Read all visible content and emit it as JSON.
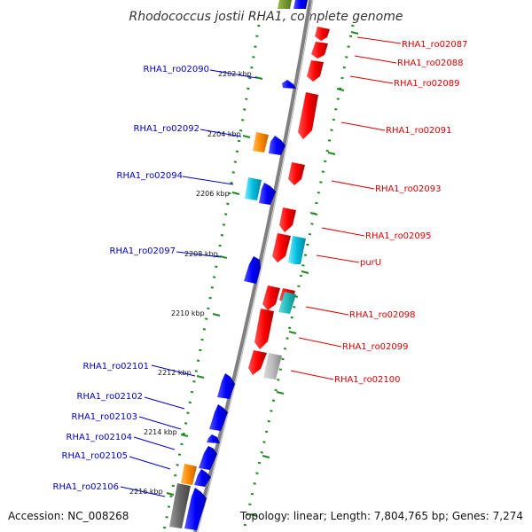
{
  "title": "Rhodococcus jostii RHA1, complete genome",
  "footer": {
    "accession": "Accession: NC_008268",
    "topology": "Topology: linear; Length: 7,804,765 bp; Genes: 7,274"
  },
  "colors": {
    "backbone": "#808080",
    "forward_gene": "#ff0000",
    "reverse_gene": "#0000ff",
    "orange_gene": "#ff8800",
    "cyan_gene": "#00bbdd",
    "gray_gene": "#aaaaaa",
    "track_dots": "#228822",
    "left_label": "#0000cc",
    "right_label": "#dd0000"
  },
  "ticks": [
    "2202 kbp",
    "2204 kbp",
    "2206 kbp",
    "2208 kbp",
    "2210 kbp",
    "2212 kbp",
    "2214 kbp",
    "2216 kbp"
  ],
  "left_labels": [
    "RHA1_ro02090",
    "RHA1_ro02092",
    "RHA1_ro02094",
    "RHA1_ro02097",
    "RHA1_ro02101",
    "RHA1_ro02102",
    "RHA1_ro02103",
    "RHA1_ro02104",
    "RHA1_ro02105",
    "RHA1_ro02106"
  ],
  "right_labels": [
    "RHA1_ro02087",
    "RHA1_ro02088",
    "RHA1_ro02089",
    "RHA1_ro02091",
    "RHA1_ro02093",
    "RHA1_ro02095",
    "purU",
    "RHA1_ro02098",
    "RHA1_ro02099",
    "RHA1_ro02100"
  ]
}
